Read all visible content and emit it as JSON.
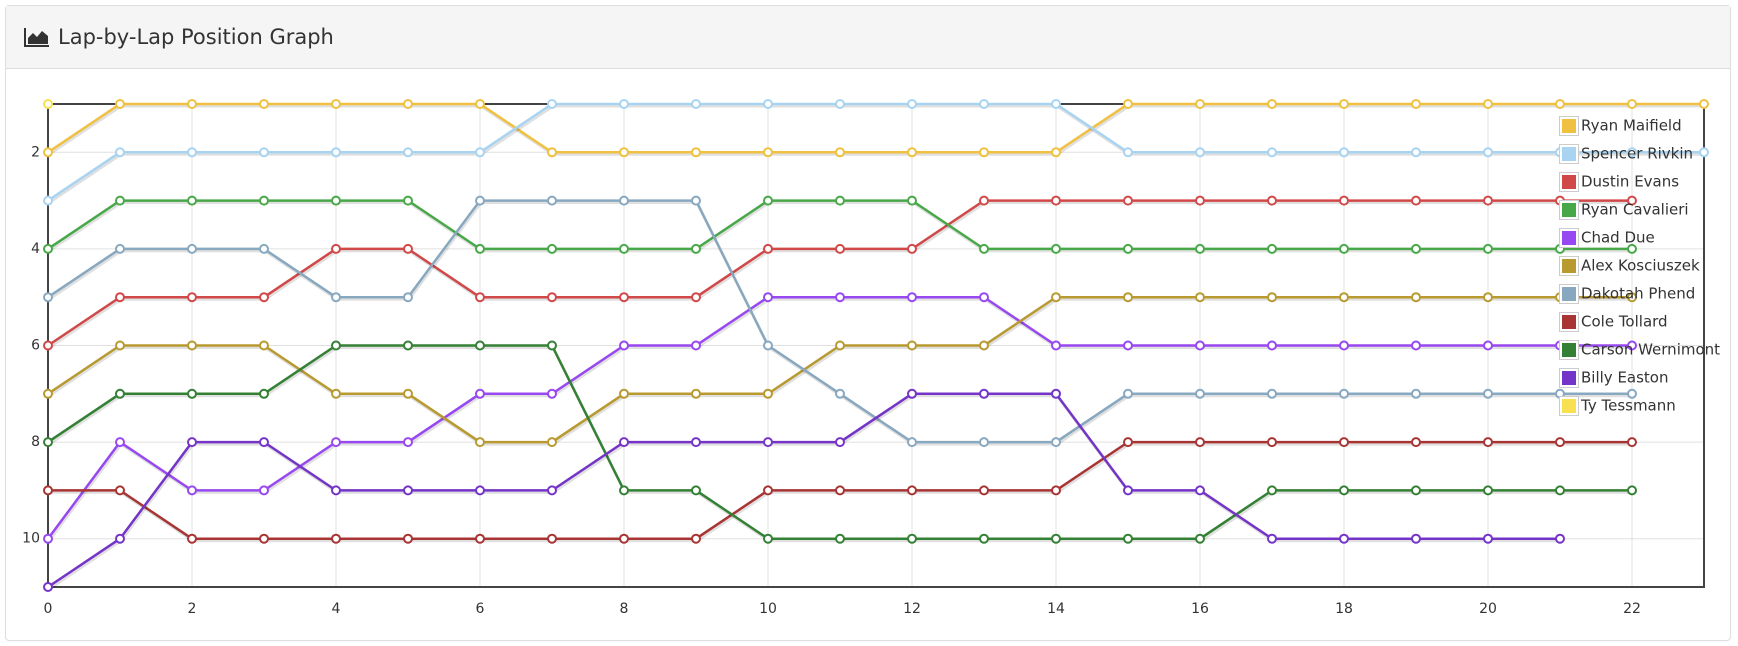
{
  "chart_data": {
    "type": "line",
    "title": "Lap-by-Lap Position Graph",
    "x": [
      0,
      1,
      2,
      3,
      4,
      5,
      6,
      7,
      8,
      9,
      10,
      11,
      12,
      13,
      14,
      15,
      16,
      17,
      18,
      19,
      20,
      21,
      22,
      23
    ],
    "xlim": [
      0,
      23
    ],
    "xticks": [
      0,
      2,
      4,
      6,
      8,
      10,
      12,
      14,
      16,
      18,
      20,
      22
    ],
    "ylim": [
      1,
      11
    ],
    "y_inverted": true,
    "yticks": [
      2,
      4,
      6,
      8,
      10
    ],
    "grid": true,
    "legend": "top-right",
    "series": [
      {
        "name": "Ryan Maifield",
        "color": "#f0c040",
        "values": [
          2,
          1,
          1,
          1,
          1,
          1,
          1,
          2,
          2,
          2,
          2,
          2,
          2,
          2,
          2,
          1,
          1,
          1,
          1,
          1,
          1,
          1,
          1,
          1
        ]
      },
      {
        "name": "Spencer Rivkin",
        "color": "#a8d4f2",
        "values": [
          3,
          2,
          2,
          2,
          2,
          2,
          2,
          1,
          1,
          1,
          1,
          1,
          1,
          1,
          1,
          2,
          2,
          2,
          2,
          2,
          2,
          2,
          2,
          2
        ]
      },
      {
        "name": "Dustin Evans",
        "color": "#d04848",
        "values": [
          6,
          5,
          5,
          5,
          4,
          4,
          5,
          5,
          5,
          5,
          4,
          4,
          4,
          3,
          3,
          3,
          3,
          3,
          3,
          3,
          3,
          3,
          3,
          null
        ]
      },
      {
        "name": "Ryan Cavalieri",
        "color": "#48a848",
        "values": [
          4,
          3,
          3,
          3,
          3,
          3,
          4,
          4,
          4,
          4,
          3,
          3,
          3,
          4,
          4,
          4,
          4,
          4,
          4,
          4,
          4,
          4,
          4,
          null
        ]
      },
      {
        "name": "Chad Due",
        "color": "#9848f0",
        "values": [
          10,
          8,
          9,
          9,
          8,
          8,
          7,
          7,
          6,
          6,
          5,
          5,
          5,
          5,
          6,
          6,
          6,
          6,
          6,
          6,
          6,
          6,
          6,
          null
        ]
      },
      {
        "name": "Alex Kosciuszek",
        "color": "#b89a30",
        "values": [
          7,
          6,
          6,
          6,
          7,
          7,
          8,
          8,
          7,
          7,
          7,
          6,
          6,
          6,
          5,
          5,
          5,
          5,
          5,
          5,
          5,
          5,
          5,
          null
        ]
      },
      {
        "name": "Dakotah Phend",
        "color": "#88a8c0",
        "values": [
          5,
          4,
          4,
          4,
          5,
          5,
          3,
          3,
          3,
          3,
          6,
          7,
          8,
          8,
          8,
          7,
          7,
          7,
          7,
          7,
          7,
          7,
          7,
          null
        ]
      },
      {
        "name": "Cole Tollard",
        "color": "#a83434",
        "values": [
          9,
          9,
          10,
          10,
          10,
          10,
          10,
          10,
          10,
          10,
          9,
          9,
          9,
          9,
          9,
          8,
          8,
          8,
          8,
          8,
          8,
          8,
          8,
          null
        ]
      },
      {
        "name": "Carson Wernimont",
        "color": "#348034",
        "values": [
          8,
          7,
          7,
          7,
          6,
          6,
          6,
          6,
          9,
          9,
          10,
          10,
          10,
          10,
          10,
          10,
          10,
          9,
          9,
          9,
          9,
          9,
          9,
          null
        ]
      },
      {
        "name": "Billy Easton",
        "color": "#7434c8",
        "values": [
          11,
          10,
          8,
          8,
          9,
          9,
          9,
          9,
          8,
          8,
          8,
          8,
          7,
          7,
          7,
          9,
          9,
          10,
          10,
          10,
          10,
          10,
          null,
          null
        ]
      },
      {
        "name": "Ty Tessmann",
        "color": "#f8e050",
        "values": [
          1,
          null,
          null,
          null,
          null,
          null,
          null,
          null,
          null,
          null,
          null,
          null,
          null,
          null,
          null,
          null,
          null,
          null,
          null,
          null,
          null,
          null,
          null,
          null
        ]
      }
    ]
  }
}
